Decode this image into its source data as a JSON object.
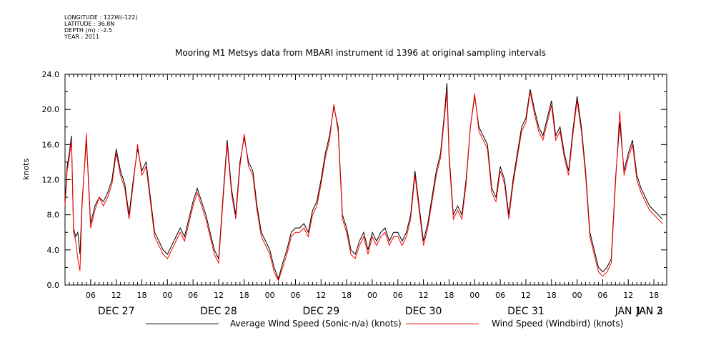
{
  "header": {
    "longitude": "LONGITUDE : 122W(-122)",
    "latitude": "LATITUDE : 36.8N",
    "depth": "DEPTH (m) : -2.5",
    "year": "YEAR : 2011"
  },
  "chart_data": {
    "type": "line",
    "title": "Mooring M1 Metsys data from MBARI instrument id 1396 at original sampling intervals",
    "ylabel": "knots",
    "xlabel": "",
    "ylim": [
      0,
      24
    ],
    "yticks": [
      "0.0",
      "4.0",
      "8.0",
      "12.0",
      "16.0",
      "20.0",
      "24.0"
    ],
    "xlim_hours": [
      0,
      141
    ],
    "x_hour_ticks": [
      "06",
      "12",
      "18",
      "00",
      "06",
      "12",
      "18",
      "00",
      "06",
      "12",
      "18",
      "00",
      "06",
      "12",
      "18",
      "00",
      "06",
      "12",
      "18",
      "00",
      "06",
      "12",
      "18",
      "00",
      "06",
      "12",
      "18",
      "00"
    ],
    "x_day_labels": [
      "DEC 27",
      "DEC 28",
      "DEC 29",
      "DEC 30",
      "DEC 31",
      "JAN  1",
      "JAN  2",
      "JAN  3"
    ],
    "grid": false,
    "legend_position": "bottom",
    "series": [
      {
        "name": "Average Wind Speed (Sonic-n/a) (knots)",
        "color": "#000000",
        "points": [
          [
            0,
            9.5
          ],
          [
            0.5,
            13.5
          ],
          [
            1,
            15
          ],
          [
            1.5,
            17
          ],
          [
            2,
            6.5
          ],
          [
            2.5,
            5.5
          ],
          [
            3,
            6
          ],
          [
            3.5,
            3.5
          ],
          [
            4,
            9.5
          ],
          [
            5,
            16.5
          ],
          [
            5.5,
            12
          ],
          [
            6,
            7
          ],
          [
            7,
            9
          ],
          [
            8,
            10
          ],
          [
            9,
            9.5
          ],
          [
            10,
            10.5
          ],
          [
            11,
            12
          ],
          [
            12,
            15.5
          ],
          [
            13,
            13
          ],
          [
            14,
            11.5
          ],
          [
            15,
            8
          ],
          [
            16,
            12
          ],
          [
            17,
            15.5
          ],
          [
            18,
            13
          ],
          [
            19,
            14
          ],
          [
            20,
            10
          ],
          [
            21,
            6
          ],
          [
            22,
            5
          ],
          [
            23,
            4
          ],
          [
            24,
            3.5
          ],
          [
            25,
            4.5
          ],
          [
            26,
            5.5
          ],
          [
            27,
            6.5
          ],
          [
            28,
            5.5
          ],
          [
            29,
            7.5
          ],
          [
            30,
            9.5
          ],
          [
            31,
            11
          ],
          [
            32,
            9.5
          ],
          [
            33,
            8
          ],
          [
            34,
            6
          ],
          [
            35,
            4
          ],
          [
            36,
            3
          ],
          [
            37,
            10
          ],
          [
            38,
            16.5
          ],
          [
            39,
            11
          ],
          [
            40,
            8
          ],
          [
            41,
            14
          ],
          [
            42,
            16.8
          ],
          [
            43,
            14
          ],
          [
            44,
            13
          ],
          [
            45,
            9
          ],
          [
            46,
            6
          ],
          [
            47,
            5
          ],
          [
            48,
            4
          ],
          [
            49,
            2
          ],
          [
            50,
            0.7
          ],
          [
            51,
            2.5
          ],
          [
            52,
            4
          ],
          [
            53,
            6
          ],
          [
            54,
            6.5
          ],
          [
            55,
            6.5
          ],
          [
            56,
            7
          ],
          [
            57,
            6
          ],
          [
            58,
            8.5
          ],
          [
            59,
            9.5
          ],
          [
            60,
            12
          ],
          [
            61,
            15
          ],
          [
            62,
            17
          ],
          [
            63,
            20.3
          ],
          [
            64,
            18
          ],
          [
            65,
            8
          ],
          [
            66,
            6.5
          ],
          [
            67,
            4
          ],
          [
            68,
            3.5
          ],
          [
            69,
            5
          ],
          [
            70,
            6
          ],
          [
            71,
            4
          ],
          [
            72,
            6
          ],
          [
            73,
            5
          ],
          [
            74,
            6
          ],
          [
            75,
            6.5
          ],
          [
            76,
            5
          ],
          [
            77,
            6
          ],
          [
            78,
            6
          ],
          [
            79,
            5
          ],
          [
            80,
            6
          ],
          [
            81,
            8
          ],
          [
            82,
            13
          ],
          [
            83,
            9
          ],
          [
            84,
            5
          ],
          [
            85,
            7
          ],
          [
            86,
            10
          ],
          [
            87,
            13
          ],
          [
            88,
            15
          ],
          [
            89,
            20
          ],
          [
            89.5,
            23
          ],
          [
            90,
            15
          ],
          [
            91,
            8
          ],
          [
            92,
            9
          ],
          [
            93,
            8
          ],
          [
            94,
            12
          ],
          [
            95,
            18
          ],
          [
            96,
            21.5
          ],
          [
            97,
            18
          ],
          [
            98,
            17
          ],
          [
            99,
            16
          ],
          [
            100,
            11
          ],
          [
            101,
            10
          ],
          [
            102,
            13.5
          ],
          [
            103,
            12
          ],
          [
            104,
            8
          ],
          [
            105,
            12
          ],
          [
            106,
            15
          ],
          [
            107,
            18
          ],
          [
            108,
            19
          ],
          [
            109,
            22.3
          ],
          [
            110,
            20
          ],
          [
            111,
            18
          ],
          [
            112,
            17
          ],
          [
            113,
            19
          ],
          [
            114,
            21
          ],
          [
            115,
            17
          ],
          [
            116,
            18
          ],
          [
            117,
            15
          ],
          [
            118,
            13
          ],
          [
            119,
            17.5
          ],
          [
            120,
            21.5
          ],
          [
            121,
            18
          ],
          [
            122,
            13
          ],
          [
            123,
            6
          ],
          [
            124,
            4
          ],
          [
            125,
            2
          ],
          [
            126,
            1.5
          ],
          [
            127,
            2
          ],
          [
            128,
            3
          ],
          [
            129,
            12
          ],
          [
            130,
            18.5
          ],
          [
            131,
            13
          ],
          [
            132,
            15
          ],
          [
            133,
            16.5
          ],
          [
            134,
            12.5
          ],
          [
            135,
            11
          ],
          [
            136,
            10
          ],
          [
            137,
            9
          ],
          [
            138,
            8.5
          ],
          [
            139,
            8
          ],
          [
            140,
            7.5
          ]
        ]
      },
      {
        "name": "Wind Speed (Windbird) (knots)",
        "color": "#ff0000",
        "points": [
          [
            0,
            9
          ],
          [
            0.5,
            13
          ],
          [
            1,
            14.5
          ],
          [
            1.5,
            16.5
          ],
          [
            2,
            6
          ],
          [
            2.5,
            5
          ],
          [
            3,
            3
          ],
          [
            3.5,
            1.6
          ],
          [
            4,
            9
          ],
          [
            5,
            17.3
          ],
          [
            5.5,
            11.5
          ],
          [
            6,
            6.5
          ],
          [
            7,
            8.5
          ],
          [
            8,
            10
          ],
          [
            9,
            9
          ],
          [
            10,
            10
          ],
          [
            11,
            11.5
          ],
          [
            12,
            15
          ],
          [
            13,
            12.5
          ],
          [
            14,
            11
          ],
          [
            15,
            7.5
          ],
          [
            16,
            11.5
          ],
          [
            17,
            16
          ],
          [
            18,
            12.5
          ],
          [
            19,
            13.5
          ],
          [
            20,
            9.5
          ],
          [
            21,
            5.5
          ],
          [
            22,
            4.5
          ],
          [
            23,
            3.5
          ],
          [
            24,
            3
          ],
          [
            25,
            4
          ],
          [
            26,
            5
          ],
          [
            27,
            6
          ],
          [
            28,
            5
          ],
          [
            29,
            7
          ],
          [
            30,
            9
          ],
          [
            31,
            10.5
          ],
          [
            32,
            9
          ],
          [
            33,
            7.5
          ],
          [
            34,
            5.5
          ],
          [
            35,
            3.5
          ],
          [
            36,
            2.5
          ],
          [
            37,
            9.5
          ],
          [
            38,
            16
          ],
          [
            39,
            10.5
          ],
          [
            40,
            7.5
          ],
          [
            41,
            13.5
          ],
          [
            42,
            17.2
          ],
          [
            43,
            13.5
          ],
          [
            44,
            12.5
          ],
          [
            45,
            8.5
          ],
          [
            46,
            5.5
          ],
          [
            47,
            4.5
          ],
          [
            48,
            3.5
          ],
          [
            49,
            1.5
          ],
          [
            50,
            0.5
          ],
          [
            51,
            2
          ],
          [
            52,
            3.5
          ],
          [
            53,
            5.5
          ],
          [
            54,
            6
          ],
          [
            55,
            6
          ],
          [
            56,
            6.5
          ],
          [
            57,
            5.5
          ],
          [
            58,
            8
          ],
          [
            59,
            9
          ],
          [
            60,
            11.5
          ],
          [
            61,
            14.5
          ],
          [
            62,
            16.5
          ],
          [
            63,
            20.6
          ],
          [
            64,
            17.5
          ],
          [
            65,
            7.5
          ],
          [
            66,
            6
          ],
          [
            67,
            3.5
          ],
          [
            68,
            3
          ],
          [
            69,
            4.5
          ],
          [
            70,
            5.5
          ],
          [
            71,
            3.5
          ],
          [
            72,
            5.5
          ],
          [
            73,
            4.5
          ],
          [
            74,
            5.5
          ],
          [
            75,
            6
          ],
          [
            76,
            4.5
          ],
          [
            77,
            5.5
          ],
          [
            78,
            5.5
          ],
          [
            79,
            4.5
          ],
          [
            80,
            5.5
          ],
          [
            81,
            7.5
          ],
          [
            82,
            12.5
          ],
          [
            83,
            8.5
          ],
          [
            84,
            4.5
          ],
          [
            85,
            6.5
          ],
          [
            86,
            9.5
          ],
          [
            87,
            12.5
          ],
          [
            88,
            14.5
          ],
          [
            89,
            19.5
          ],
          [
            89.5,
            22
          ],
          [
            90,
            14.5
          ],
          [
            91,
            7.5
          ],
          [
            92,
            8.5
          ],
          [
            93,
            7.5
          ],
          [
            94,
            11.5
          ],
          [
            95,
            18
          ],
          [
            96,
            21.8
          ],
          [
            97,
            17.5
          ],
          [
            98,
            16.5
          ],
          [
            99,
            15.5
          ],
          [
            100,
            10.5
          ],
          [
            101,
            9.5
          ],
          [
            102,
            13
          ],
          [
            103,
            11.5
          ],
          [
            104,
            7.5
          ],
          [
            105,
            11.5
          ],
          [
            106,
            14.5
          ],
          [
            107,
            17.5
          ],
          [
            108,
            18.5
          ],
          [
            109,
            22
          ],
          [
            110,
            19.5
          ],
          [
            111,
            17.5
          ],
          [
            112,
            16.5
          ],
          [
            113,
            18.5
          ],
          [
            114,
            20.5
          ],
          [
            115,
            16.5
          ],
          [
            116,
            17.5
          ],
          [
            117,
            14.5
          ],
          [
            118,
            12.5
          ],
          [
            119,
            17
          ],
          [
            120,
            21
          ],
          [
            121,
            17.5
          ],
          [
            122,
            12.5
          ],
          [
            123,
            5.5
          ],
          [
            124,
            3.5
          ],
          [
            125,
            1.5
          ],
          [
            126,
            1
          ],
          [
            127,
            1.5
          ],
          [
            128,
            2.5
          ],
          [
            129,
            11.5
          ],
          [
            130,
            19.8
          ],
          [
            131,
            12.5
          ],
          [
            132,
            14.5
          ],
          [
            133,
            16
          ],
          [
            134,
            12
          ],
          [
            135,
            10.5
          ],
          [
            136,
            9.5
          ],
          [
            137,
            8.5
          ],
          [
            138,
            8
          ],
          [
            139,
            7.5
          ],
          [
            140,
            7
          ]
        ]
      }
    ]
  }
}
